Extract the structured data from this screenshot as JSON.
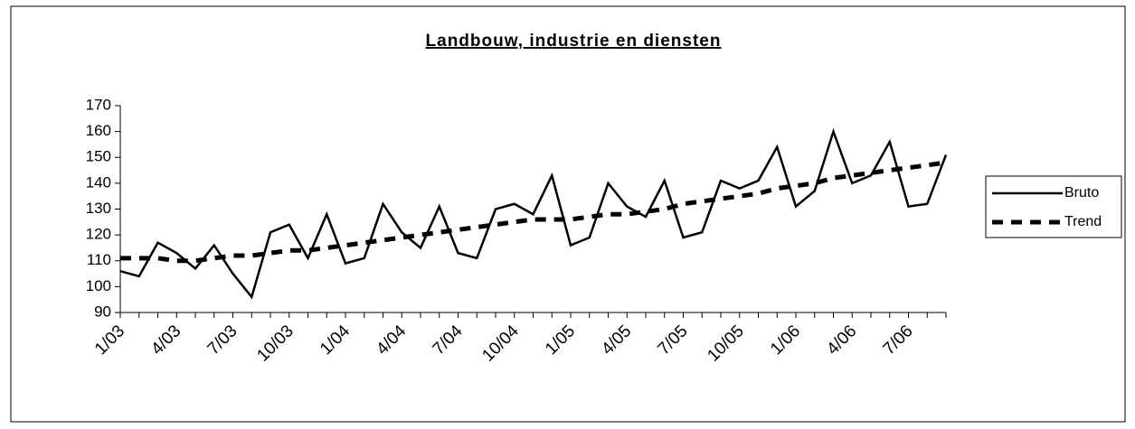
{
  "chart_data": {
    "type": "line",
    "title": "Landbouw, industrie en diensten",
    "categories": [
      "1/03",
      null,
      null,
      "4/03",
      null,
      null,
      "7/03",
      null,
      null,
      "10/03",
      null,
      null,
      "1/04",
      null,
      null,
      "4/04",
      null,
      null,
      "7/04",
      null,
      null,
      "10/04",
      null,
      null,
      "1/05",
      null,
      null,
      "4/05",
      null,
      null,
      "7/05",
      null,
      null,
      "10/05",
      null,
      null,
      "1/06",
      null,
      null,
      "4/06",
      null,
      null,
      "7/06",
      null,
      null
    ],
    "series": [
      {
        "name": "Bruto",
        "color": "#000000",
        "dash": "solid",
        "values": [
          106,
          104,
          117,
          113,
          107,
          116,
          105,
          96,
          121,
          124,
          111,
          128,
          109,
          111,
          132,
          121,
          115,
          131,
          113,
          111,
          130,
          132,
          128,
          143,
          116,
          119,
          140,
          131,
          127,
          141,
          119,
          121,
          141,
          138,
          141,
          154,
          131,
          137,
          160,
          140,
          143,
          156,
          131,
          132,
          151
        ]
      },
      {
        "name": "Trend",
        "color": "#000000",
        "dash": "dashed",
        "values": [
          111,
          111,
          111,
          110,
          110,
          111,
          112,
          112,
          113,
          114,
          114,
          115,
          116,
          117,
          118,
          119,
          120,
          121,
          122,
          123,
          124,
          125,
          126,
          126,
          126,
          127,
          128,
          128,
          129,
          130,
          132,
          133,
          134,
          135,
          136,
          138,
          139,
          140,
          142,
          143,
          144,
          145,
          146,
          147,
          148
        ]
      }
    ],
    "ylim": [
      90,
      170
    ],
    "yticks": [
      90,
      100,
      110,
      120,
      130,
      140,
      150,
      160,
      170
    ],
    "grid": false,
    "legend": "right"
  }
}
